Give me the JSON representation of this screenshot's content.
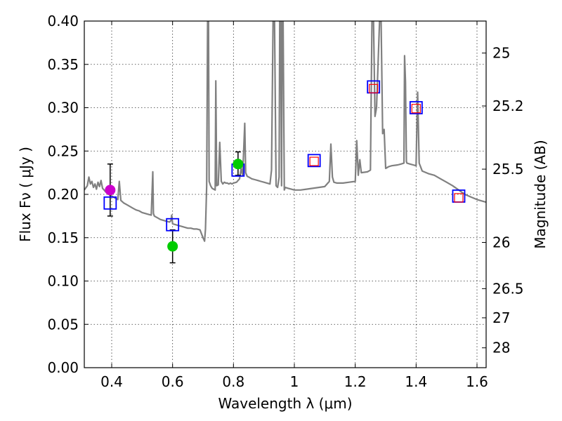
{
  "chart_data": {
    "type": "scatter",
    "title": "",
    "xlabel": "Wavelength  λ (μm)",
    "ylabel": "Flux  Fν  ( μJy )",
    "y2label": "Magnitude (AB)",
    "xlim": [
      0.31,
      1.63
    ],
    "ylim": [
      0.0,
      0.4
    ],
    "grid": true,
    "x_ticks": [
      0.4,
      0.6,
      0.8,
      1.0,
      1.2,
      1.4,
      1.6
    ],
    "x_tick_labels": [
      "0.4",
      "0.6",
      "0.8",
      "1",
      "1.2",
      "1.4",
      "1.6"
    ],
    "y_ticks": [
      0.0,
      0.05,
      0.1,
      0.15,
      0.2,
      0.25,
      0.3,
      0.35,
      0.4
    ],
    "y_tick_labels": [
      "0.00",
      "0.05",
      "0.10",
      "0.15",
      "0.20",
      "0.25",
      "0.30",
      "0.35",
      "0.40"
    ],
    "y2_ticks": [
      25,
      25.2,
      25.5,
      26,
      26.5,
      27,
      28
    ],
    "y2_tick_labels": [
      "25",
      "25.2",
      "25.5",
      "26",
      "26.5",
      "27",
      "28"
    ],
    "series": [
      {
        "kind": "line",
        "color": "#808080",
        "x": [
          0.31,
          0.32,
          0.325,
          0.33,
          0.335,
          0.34,
          0.345,
          0.35,
          0.355,
          0.36,
          0.365,
          0.37,
          0.375,
          0.38,
          0.39,
          0.4,
          0.41,
          0.42,
          0.425,
          0.43,
          0.44,
          0.45,
          0.46,
          0.47,
          0.48,
          0.49,
          0.5,
          0.51,
          0.52,
          0.53,
          0.535,
          0.537,
          0.54,
          0.55,
          0.56,
          0.57,
          0.58,
          0.59,
          0.595,
          0.597,
          0.6,
          0.61,
          0.62,
          0.63,
          0.64,
          0.65,
          0.66,
          0.67,
          0.68,
          0.69,
          0.7,
          0.705,
          0.708,
          0.712,
          0.715,
          0.718,
          0.72,
          0.725,
          0.73,
          0.735,
          0.74,
          0.742,
          0.745,
          0.75,
          0.755,
          0.76,
          0.765,
          0.77,
          0.775,
          0.78,
          0.785,
          0.79,
          0.795,
          0.8,
          0.81,
          0.82,
          0.825,
          0.83,
          0.833,
          0.837,
          0.84,
          0.845,
          0.85,
          0.855,
          0.86,
          0.87,
          0.88,
          0.89,
          0.9,
          0.91,
          0.92,
          0.925,
          0.93,
          0.935,
          0.94,
          0.945,
          0.95,
          0.952,
          0.955,
          0.958,
          0.96,
          0.963,
          0.967,
          0.97,
          0.98,
          0.99,
          1.0,
          1.02,
          1.04,
          1.06,
          1.08,
          1.1,
          1.115,
          1.12,
          1.125,
          1.13,
          1.14,
          1.16,
          1.18,
          1.2,
          1.205,
          1.21,
          1.215,
          1.22,
          1.24,
          1.25,
          1.255,
          1.26,
          1.265,
          1.27,
          1.28,
          1.285,
          1.29,
          1.295,
          1.3,
          1.31,
          1.32,
          1.34,
          1.35,
          1.36,
          1.362,
          1.365,
          1.368,
          1.37,
          1.38,
          1.39,
          1.4,
          1.402,
          1.405,
          1.41,
          1.42,
          1.44,
          1.46,
          1.48,
          1.5,
          1.52,
          1.54,
          1.56,
          1.58,
          1.6,
          1.62,
          1.63
        ],
        "y": [
          0.205,
          0.21,
          0.22,
          0.212,
          0.215,
          0.208,
          0.212,
          0.206,
          0.214,
          0.209,
          0.216,
          0.207,
          0.205,
          0.203,
          0.2,
          0.198,
          0.196,
          0.194,
          0.215,
          0.193,
          0.19,
          0.188,
          0.186,
          0.184,
          0.182,
          0.181,
          0.179,
          0.178,
          0.177,
          0.176,
          0.226,
          0.178,
          0.175,
          0.173,
          0.171,
          0.17,
          0.169,
          0.168,
          0.17,
          0.176,
          0.166,
          0.165,
          0.164,
          0.163,
          0.162,
          0.161,
          0.161,
          0.16,
          0.16,
          0.159,
          0.15,
          0.146,
          0.16,
          0.21,
          0.4,
          0.4,
          0.215,
          0.21,
          0.207,
          0.206,
          0.205,
          0.331,
          0.21,
          0.211,
          0.26,
          0.215,
          0.212,
          0.214,
          0.213,
          0.213,
          0.212,
          0.213,
          0.212,
          0.213,
          0.214,
          0.218,
          0.23,
          0.222,
          0.245,
          0.282,
          0.225,
          0.221,
          0.22,
          0.219,
          0.218,
          0.217,
          0.216,
          0.215,
          0.214,
          0.213,
          0.212,
          0.228,
          0.4,
          0.4,
          0.21,
          0.208,
          0.22,
          0.4,
          0.4,
          0.21,
          0.4,
          0.4,
          0.205,
          0.208,
          0.207,
          0.206,
          0.205,
          0.205,
          0.206,
          0.207,
          0.208,
          0.209,
          0.215,
          0.258,
          0.22,
          0.214,
          0.213,
          0.213,
          0.214,
          0.215,
          0.262,
          0.222,
          0.24,
          0.225,
          0.226,
          0.228,
          0.4,
          0.4,
          0.29,
          0.3,
          0.4,
          0.4,
          0.27,
          0.275,
          0.23,
          0.232,
          0.233,
          0.234,
          0.235,
          0.236,
          0.36,
          0.33,
          0.238,
          0.236,
          0.235,
          0.234,
          0.233,
          0.27,
          0.318,
          0.236,
          0.227,
          0.224,
          0.222,
          0.218,
          0.214,
          0.21,
          0.205,
          0.2,
          0.197,
          0.194,
          0.192,
          0.191
        ]
      },
      {
        "kind": "open-square",
        "color": "#0000ff",
        "x": [
          0.395,
          0.6,
          0.815,
          1.065,
          1.26,
          1.4,
          1.54
        ],
        "y": [
          0.19,
          0.165,
          0.228,
          0.239,
          0.324,
          0.3,
          0.198
        ]
      },
      {
        "kind": "open-square-small",
        "color": "#ff0000",
        "x": [
          1.065,
          1.26,
          1.4,
          1.54
        ],
        "y": [
          0.238,
          0.322,
          0.299,
          0.196
        ]
      },
      {
        "kind": "filled-circle",
        "color": "#00cc00",
        "x": [
          0.6,
          0.815
        ],
        "y": [
          0.14,
          0.235
        ]
      },
      {
        "kind": "filled-circle",
        "color": "#cc00cc",
        "x": [
          0.395
        ],
        "y": [
          0.205
        ]
      }
    ],
    "errorbars": [
      {
        "x": 0.395,
        "y": 0.205,
        "ylow": 0.175,
        "yhigh": 0.235
      },
      {
        "x": 0.6,
        "y": 0.14,
        "ylow": 0.121,
        "yhigh": 0.159
      },
      {
        "x": 0.815,
        "y": 0.235,
        "ylow": 0.222,
        "yhigh": 0.249
      }
    ]
  }
}
